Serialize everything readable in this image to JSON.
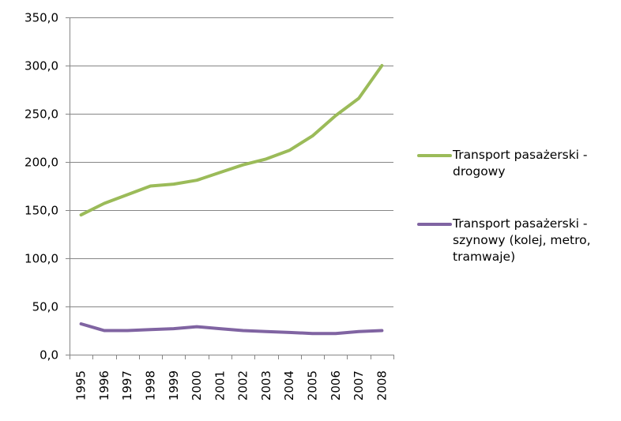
{
  "chart_data": {
    "type": "line",
    "title": "",
    "xlabel": "",
    "ylabel": "",
    "ylim": [
      0,
      350
    ],
    "yticks": [
      "0,0",
      "50,0",
      "100,0",
      "150,0",
      "200,0",
      "250,0",
      "300,0",
      "350,0"
    ],
    "ytick_values": [
      0,
      50,
      100,
      150,
      200,
      250,
      300,
      350
    ],
    "categories": [
      "1995",
      "1996",
      "1997",
      "1998",
      "1999",
      "2000",
      "2001",
      "2002",
      "2003",
      "2004",
      "2005",
      "2006",
      "2007",
      "2008"
    ],
    "grid": true,
    "legend_position": "right",
    "series": [
      {
        "name": "Transport pasażerski - drogowy",
        "color": "#9BBB59",
        "values": [
          145,
          157,
          166,
          175,
          177,
          181,
          189,
          197,
          203,
          212,
          227,
          248,
          266,
          300
        ]
      },
      {
        "name": "Transport pasażerski - szynowy (kolej, metro, tramwaje)",
        "color": "#8064A2",
        "values": [
          32,
          25,
          25,
          26,
          27,
          29,
          27,
          25,
          24,
          23,
          22,
          22,
          24,
          25
        ]
      }
    ]
  },
  "legend": {
    "items": [
      {
        "label": "Transport pasażerski - drogowy",
        "color": "#9BBB59"
      },
      {
        "label": "Transport pasażerski - szynowy (kolej, metro, tramwaje)",
        "color": "#8064A2"
      }
    ]
  }
}
